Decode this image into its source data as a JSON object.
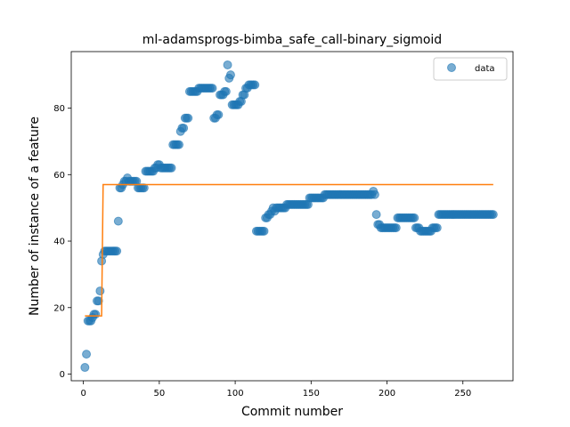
{
  "chart_data": {
    "type": "scatter",
    "title": "ml-adamsprogs-bimba_safe_call-binary_sigmoid",
    "xlabel": "Commit number",
    "ylabel": "Number of instance of a feature",
    "xlim": [
      -8,
      283
    ],
    "ylim": [
      -2,
      97
    ],
    "xticks": [
      0,
      50,
      100,
      150,
      200,
      250
    ],
    "yticks": [
      0,
      20,
      40,
      60,
      80
    ],
    "legend": {
      "position": "top-right",
      "entries": [
        "data"
      ]
    },
    "grid": false,
    "colors": {
      "data": "#1f77b4",
      "fit": "#ff7f0e"
    },
    "series": [
      {
        "name": "data",
        "kind": "scatter",
        "points": [
          [
            1,
            2
          ],
          [
            2,
            6
          ],
          [
            3,
            16
          ],
          [
            4,
            16
          ],
          [
            5,
            16
          ],
          [
            6,
            17
          ],
          [
            7,
            18
          ],
          [
            8,
            18
          ],
          [
            9,
            22
          ],
          [
            10,
            22
          ],
          [
            11,
            25
          ],
          [
            12,
            34
          ],
          [
            13,
            36
          ],
          [
            14,
            37
          ],
          [
            15,
            37
          ],
          [
            16,
            37
          ],
          [
            17,
            37
          ],
          [
            18,
            37
          ],
          [
            19,
            37
          ],
          [
            20,
            37
          ],
          [
            21,
            37
          ],
          [
            22,
            37
          ],
          [
            23,
            46
          ],
          [
            24,
            56
          ],
          [
            25,
            56
          ],
          [
            26,
            57
          ],
          [
            27,
            58
          ],
          [
            28,
            58
          ],
          [
            29,
            59
          ],
          [
            30,
            58
          ],
          [
            31,
            58
          ],
          [
            32,
            58
          ],
          [
            33,
            58
          ],
          [
            34,
            58
          ],
          [
            35,
            58
          ],
          [
            36,
            56
          ],
          [
            37,
            56
          ],
          [
            38,
            56
          ],
          [
            39,
            56
          ],
          [
            40,
            56
          ],
          [
            41,
            61
          ],
          [
            42,
            61
          ],
          [
            43,
            61
          ],
          [
            44,
            61
          ],
          [
            45,
            61
          ],
          [
            46,
            61
          ],
          [
            47,
            62
          ],
          [
            48,
            62
          ],
          [
            49,
            63
          ],
          [
            50,
            63
          ],
          [
            51,
            62
          ],
          [
            52,
            62
          ],
          [
            53,
            62
          ],
          [
            54,
            62
          ],
          [
            55,
            62
          ],
          [
            56,
            62
          ],
          [
            57,
            62
          ],
          [
            58,
            62
          ],
          [
            59,
            69
          ],
          [
            60,
            69
          ],
          [
            61,
            69
          ],
          [
            62,
            69
          ],
          [
            63,
            69
          ],
          [
            64,
            73
          ],
          [
            65,
            74
          ],
          [
            66,
            74
          ],
          [
            67,
            77
          ],
          [
            68,
            77
          ],
          [
            69,
            77
          ],
          [
            70,
            85
          ],
          [
            71,
            85
          ],
          [
            72,
            85
          ],
          [
            73,
            85
          ],
          [
            74,
            85
          ],
          [
            75,
            85
          ],
          [
            76,
            86
          ],
          [
            77,
            86
          ],
          [
            78,
            86
          ],
          [
            79,
            86
          ],
          [
            80,
            86
          ],
          [
            81,
            86
          ],
          [
            82,
            86
          ],
          [
            83,
            86
          ],
          [
            84,
            86
          ],
          [
            85,
            86
          ],
          [
            86,
            77
          ],
          [
            87,
            77
          ],
          [
            88,
            78
          ],
          [
            89,
            78
          ],
          [
            90,
            84
          ],
          [
            91,
            84
          ],
          [
            92,
            84
          ],
          [
            93,
            85
          ],
          [
            94,
            85
          ],
          [
            95,
            93
          ],
          [
            96,
            89
          ],
          [
            97,
            90
          ],
          [
            98,
            81
          ],
          [
            99,
            81
          ],
          [
            100,
            81
          ],
          [
            101,
            81
          ],
          [
            102,
            81
          ],
          [
            103,
            82
          ],
          [
            104,
            82
          ],
          [
            105,
            84
          ],
          [
            106,
            84
          ],
          [
            107,
            86
          ],
          [
            108,
            86
          ],
          [
            109,
            87
          ],
          [
            110,
            87
          ],
          [
            111,
            87
          ],
          [
            112,
            87
          ],
          [
            113,
            87
          ],
          [
            114,
            43
          ],
          [
            115,
            43
          ],
          [
            116,
            43
          ],
          [
            117,
            43
          ],
          [
            118,
            43
          ],
          [
            119,
            43
          ],
          [
            120,
            47
          ],
          [
            121,
            47
          ],
          [
            122,
            48
          ],
          [
            123,
            48
          ],
          [
            124,
            49
          ],
          [
            125,
            50
          ],
          [
            126,
            49
          ],
          [
            127,
            50
          ],
          [
            128,
            50
          ],
          [
            129,
            50
          ],
          [
            130,
            50
          ],
          [
            131,
            50
          ],
          [
            132,
            50
          ],
          [
            133,
            50
          ],
          [
            134,
            51
          ],
          [
            135,
            51
          ],
          [
            136,
            51
          ],
          [
            137,
            51
          ],
          [
            138,
            51
          ],
          [
            139,
            51
          ],
          [
            140,
            51
          ],
          [
            141,
            51
          ],
          [
            142,
            51
          ],
          [
            143,
            51
          ],
          [
            144,
            51
          ],
          [
            145,
            51
          ],
          [
            146,
            51
          ],
          [
            147,
            51
          ],
          [
            148,
            51
          ],
          [
            149,
            53
          ],
          [
            150,
            53
          ],
          [
            151,
            53
          ],
          [
            152,
            53
          ],
          [
            153,
            53
          ],
          [
            154,
            53
          ],
          [
            155,
            53
          ],
          [
            156,
            53
          ],
          [
            157,
            53
          ],
          [
            158,
            53
          ],
          [
            159,
            54
          ],
          [
            160,
            54
          ],
          [
            161,
            54
          ],
          [
            162,
            54
          ],
          [
            163,
            54
          ],
          [
            164,
            54
          ],
          [
            165,
            54
          ],
          [
            166,
            54
          ],
          [
            167,
            54
          ],
          [
            168,
            54
          ],
          [
            169,
            54
          ],
          [
            170,
            54
          ],
          [
            171,
            54
          ],
          [
            172,
            54
          ],
          [
            173,
            54
          ],
          [
            174,
            54
          ],
          [
            175,
            54
          ],
          [
            176,
            54
          ],
          [
            177,
            54
          ],
          [
            178,
            54
          ],
          [
            179,
            54
          ],
          [
            180,
            54
          ],
          [
            181,
            54
          ],
          [
            182,
            54
          ],
          [
            183,
            54
          ],
          [
            184,
            54
          ],
          [
            185,
            54
          ],
          [
            186,
            54
          ],
          [
            187,
            54
          ],
          [
            188,
            54
          ],
          [
            189,
            54
          ],
          [
            190,
            54
          ],
          [
            191,
            55
          ],
          [
            192,
            54
          ],
          [
            193,
            48
          ],
          [
            194,
            45
          ],
          [
            195,
            45
          ],
          [
            196,
            44
          ],
          [
            197,
            44
          ],
          [
            198,
            44
          ],
          [
            199,
            44
          ],
          [
            200,
            44
          ],
          [
            201,
            44
          ],
          [
            202,
            44
          ],
          [
            203,
            44
          ],
          [
            204,
            44
          ],
          [
            205,
            44
          ],
          [
            206,
            44
          ],
          [
            207,
            47
          ],
          [
            208,
            47
          ],
          [
            209,
            47
          ],
          [
            210,
            47
          ],
          [
            211,
            47
          ],
          [
            212,
            47
          ],
          [
            213,
            47
          ],
          [
            214,
            47
          ],
          [
            215,
            47
          ],
          [
            216,
            47
          ],
          [
            217,
            47
          ],
          [
            218,
            47
          ],
          [
            219,
            44
          ],
          [
            220,
            44
          ],
          [
            221,
            44
          ],
          [
            222,
            43
          ],
          [
            223,
            43
          ],
          [
            224,
            43
          ],
          [
            225,
            43
          ],
          [
            226,
            43
          ],
          [
            227,
            43
          ],
          [
            228,
            43
          ],
          [
            229,
            43
          ],
          [
            230,
            44
          ],
          [
            231,
            44
          ],
          [
            232,
            44
          ],
          [
            233,
            44
          ],
          [
            234,
            48
          ],
          [
            235,
            48
          ],
          [
            236,
            48
          ],
          [
            237,
            48
          ],
          [
            238,
            48
          ],
          [
            239,
            48
          ],
          [
            240,
            48
          ],
          [
            241,
            48
          ],
          [
            242,
            48
          ],
          [
            243,
            48
          ],
          [
            244,
            48
          ],
          [
            245,
            48
          ],
          [
            246,
            48
          ],
          [
            247,
            48
          ],
          [
            248,
            48
          ],
          [
            249,
            48
          ],
          [
            250,
            48
          ],
          [
            251,
            48
          ],
          [
            252,
            48
          ],
          [
            253,
            48
          ],
          [
            254,
            48
          ],
          [
            255,
            48
          ],
          [
            256,
            48
          ],
          [
            257,
            48
          ],
          [
            258,
            48
          ],
          [
            259,
            48
          ],
          [
            260,
            48
          ],
          [
            261,
            48
          ],
          [
            262,
            48
          ],
          [
            263,
            48
          ],
          [
            264,
            48
          ],
          [
            265,
            48
          ],
          [
            266,
            48
          ],
          [
            267,
            48
          ],
          [
            268,
            48
          ],
          [
            269,
            48
          ],
          [
            270,
            48
          ]
        ]
      },
      {
        "kind": "line",
        "points": [
          [
            1,
            17.5
          ],
          [
            12,
            17.5
          ],
          [
            13,
            57
          ],
          [
            270,
            57
          ]
        ]
      }
    ]
  }
}
